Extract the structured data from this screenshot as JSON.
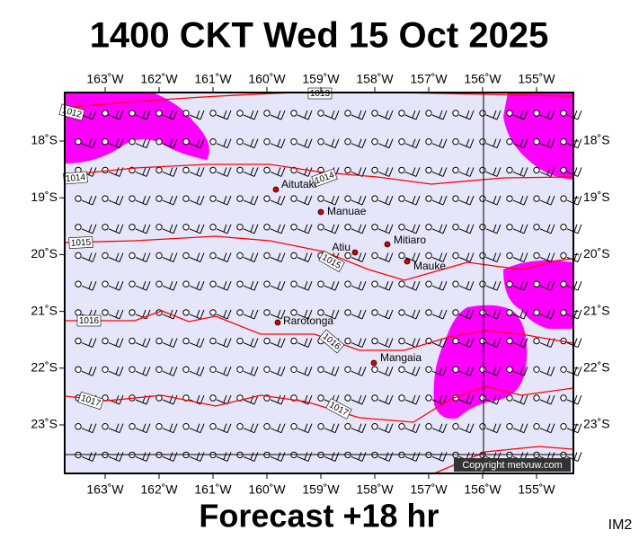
{
  "header": {
    "title": "1400 CKT Wed 15 Oct 2025"
  },
  "axes": {
    "longitudes": [
      "163˚W",
      "162˚W",
      "161˚W",
      "160˚W",
      "159˚W",
      "158˚W",
      "157˚W",
      "156˚W",
      "155˚W"
    ],
    "latitudes": [
      "18˚S",
      "19˚S",
      "20˚S",
      "21˚S",
      "22˚S",
      "23˚S"
    ]
  },
  "places": [
    {
      "label": "Aitutaki"
    },
    {
      "label": "Manuae"
    },
    {
      "label": "Atiu"
    },
    {
      "label": "Mitiaro"
    },
    {
      "label": "Mauke"
    },
    {
      "label": "Rarotonga"
    },
    {
      "label": "Mangaia"
    }
  ],
  "isobar_labels": [
    "1013",
    "1012",
    "1014",
    "1014",
    "1015",
    "1015",
    "1016",
    "1016",
    "1017",
    "1017"
  ],
  "copyright": "Copyright metvuw.com",
  "footer": {
    "forecast": "Forecast +18 hr",
    "code": "IM2"
  }
}
